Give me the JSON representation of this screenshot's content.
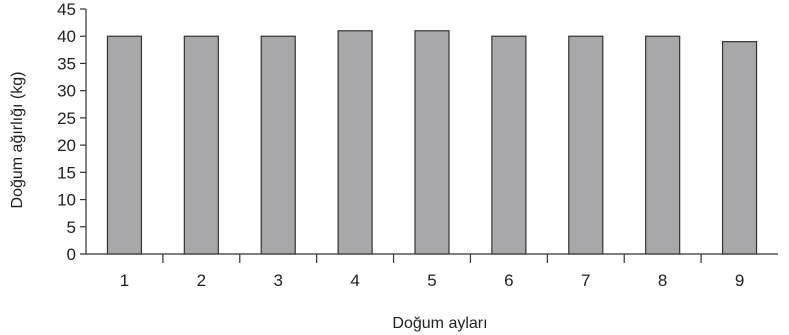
{
  "chart_data": {
    "type": "bar",
    "categories": [
      "1",
      "2",
      "3",
      "4",
      "5",
      "6",
      "7",
      "8",
      "9"
    ],
    "values": [
      40,
      40,
      40,
      41,
      41,
      40,
      40,
      40,
      39
    ],
    "title": "",
    "xlabel": "Doğum ayları",
    "ylabel": "Doğum ağırlığı (kg)",
    "ylim": [
      0,
      45
    ],
    "yticks": [
      "0",
      "5",
      "10",
      "15",
      "20",
      "25",
      "30",
      "35",
      "40",
      "45"
    ],
    "grid": false,
    "legend": "none",
    "bar_color": "#a8a8aa",
    "bar_stroke": "#333333"
  }
}
